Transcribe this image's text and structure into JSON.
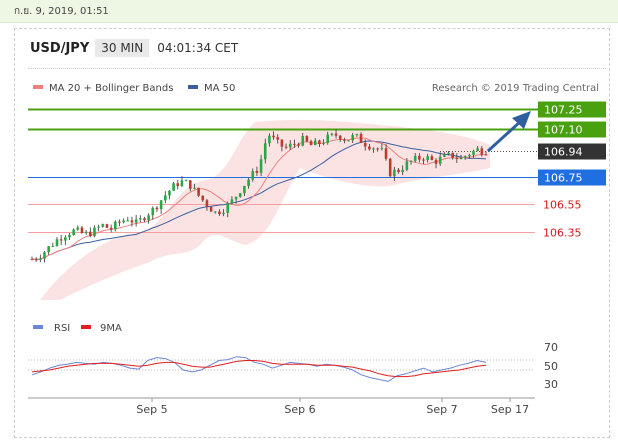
{
  "timestamp": "ก.ย. 9, 2019, 01:51",
  "header": {
    "pair": "USD/JPY",
    "timeframe": "30 MIN",
    "time": "04:01:34 CET"
  },
  "legend": {
    "items": [
      {
        "label": "MA 20 + Bollinger Bands",
        "color": "#f08080"
      },
      {
        "label": "MA 50",
        "color": "#3a5f9e"
      }
    ],
    "credit": "Research © 2019 Trading Central"
  },
  "rsi_legend": [
    {
      "label": "RSI",
      "color": "#6b86d6"
    },
    {
      "label": "9MA",
      "color": "#e02020"
    }
  ],
  "chart_data": {
    "type": "candlestick",
    "symbol": "USD/JPY",
    "price_levels": [
      {
        "value": 107.25,
        "label": "107.25",
        "style": "green-resistance",
        "color": "#4aa10f"
      },
      {
        "value": 107.1,
        "label": "107.10",
        "style": "green-resistance",
        "color": "#4aa10f"
      },
      {
        "value": 106.94,
        "label": "106.94",
        "style": "current-price",
        "color": "#333333"
      },
      {
        "value": 106.75,
        "label": "106.75",
        "style": "pivot",
        "color": "#1f6fe0"
      },
      {
        "value": 106.55,
        "label": "106.55",
        "style": "red-support",
        "color": "#d11a1a"
      },
      {
        "value": 106.35,
        "label": "106.35",
        "style": "red-support",
        "color": "#d11a1a"
      }
    ],
    "x_tick_labels": [
      "Sep 5",
      "Sep 6",
      "Sep 7",
      "Sep 17"
    ],
    "rsi_ticks": [
      70,
      50,
      30
    ],
    "close_path": [
      106.15,
      106.18,
      106.24,
      106.3,
      106.34,
      106.36,
      106.33,
      106.35,
      106.4,
      106.37,
      106.42,
      106.45,
      106.41,
      106.47,
      106.52,
      106.6,
      106.67,
      106.72,
      106.7,
      106.62,
      106.55,
      106.49,
      106.52,
      106.58,
      106.67,
      106.75,
      106.82,
      107.07,
      107.0,
      106.96,
      106.99,
      107.02,
      106.98,
      107.0,
      107.04,
      107.06,
      107.02,
      107.05,
      107.0,
      106.97,
      106.95,
      106.78,
      106.8,
      106.85,
      106.88,
      106.9,
      106.86,
      106.89,
      106.91,
      106.88,
      106.92,
      106.95,
      106.94
    ],
    "rsi_values": [
      45,
      48,
      52,
      55,
      56,
      58,
      57,
      56,
      58,
      57,
      55,
      52,
      51,
      60,
      63,
      62,
      58,
      50,
      48,
      50,
      55,
      60,
      61,
      64,
      63,
      58,
      56,
      52,
      55,
      58,
      57,
      56,
      54,
      56,
      55,
      53,
      50,
      45,
      42,
      40,
      38,
      44,
      46,
      49,
      52,
      48,
      50,
      52,
      55,
      57,
      60,
      58
    ],
    "rsi_ma": [
      48,
      49,
      50,
      52,
      54,
      55,
      56,
      57,
      57,
      57,
      56,
      55,
      54,
      55,
      57,
      58,
      58,
      56,
      54,
      53,
      53,
      55,
      57,
      59,
      60,
      60,
      59,
      57,
      56,
      56,
      56,
      56,
      55,
      55,
      55,
      54,
      53,
      51,
      49,
      46,
      44,
      43,
      43,
      44,
      46,
      47,
      48,
      49,
      50,
      52,
      54,
      55
    ]
  }
}
